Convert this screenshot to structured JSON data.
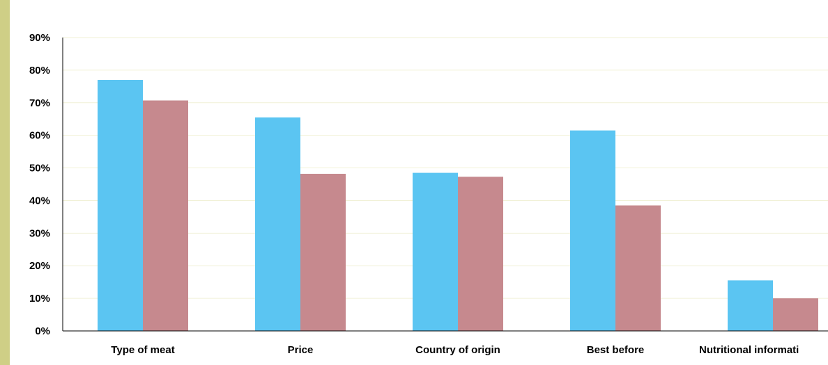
{
  "chart_data": {
    "type": "bar",
    "title": "",
    "xlabel": "",
    "ylabel": "",
    "categories": [
      "Type of meat",
      "Price",
      "Country of origin",
      "Best before",
      "Nutritional informati"
    ],
    "series": [
      {
        "color": "#5bc5f2",
        "values": [
          77,
          65.5,
          48.5,
          61.5,
          15.5
        ]
      },
      {
        "color": "#c6898e",
        "values": [
          70.7,
          48.2,
          47.3,
          38.5,
          10
        ]
      }
    ],
    "ylim": [
      0,
      90
    ],
    "yticks": [
      "0%",
      "10%",
      "20%",
      "30%",
      "40%",
      "50%",
      "60%",
      "70%",
      "80%",
      "90%"
    ],
    "grid": true,
    "legend": "none"
  },
  "colors": {
    "accent_bar": "#cfcf86",
    "grid": "#f1f1d6",
    "axis": "#000000"
  }
}
